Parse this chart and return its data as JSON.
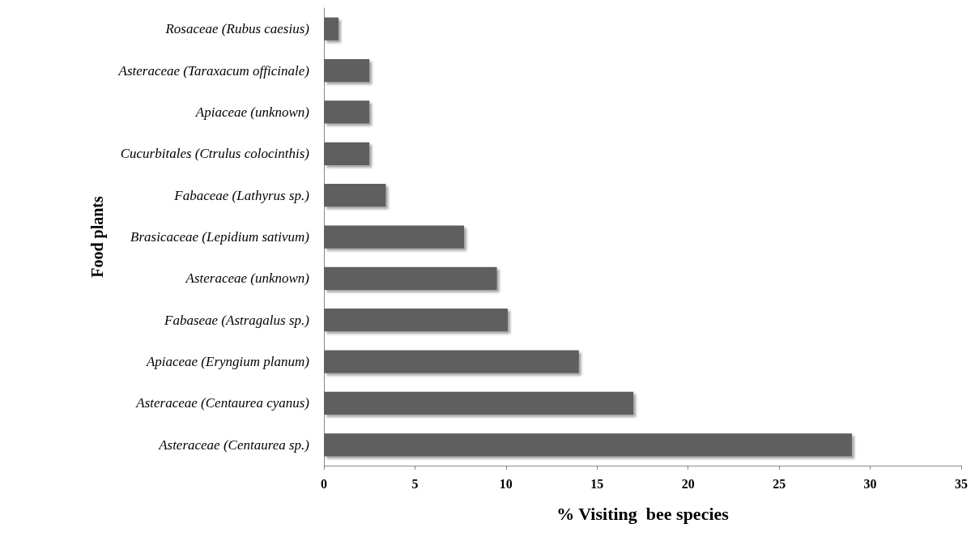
{
  "chart_data": {
    "type": "bar",
    "orientation": "horizontal",
    "xlabel": "% Visiting  bee species",
    "ylabel": "Food plants",
    "categories": [
      "Rosaceae (Rubus caesius)",
      "Asteraceae (Taraxacum officinale)",
      "Apiaceae (unknown)",
      "Cucurbitales (Ctrulus colocinthis)",
      "Fabaceae (Lathyrus sp.)",
      "Brasicaceae (Lepidium sativum)",
      "Asteraceae (unknown)",
      "Fabaseae (Astragalus sp.)",
      "Apiaceae (Eryngium planum)",
      "Asteraceae (Centaurea cyanus)",
      "Asteraceae (Centaurea sp.)"
    ],
    "values": [
      0.8,
      2.5,
      2.5,
      2.5,
      3.4,
      7.7,
      9.5,
      10.1,
      14,
      17,
      29
    ],
    "color": "#5e5e5e",
    "xlim": [
      0,
      35
    ],
    "xticks": [
      0,
      5,
      10,
      15,
      20,
      25,
      30,
      35
    ],
    "grid": false
  }
}
